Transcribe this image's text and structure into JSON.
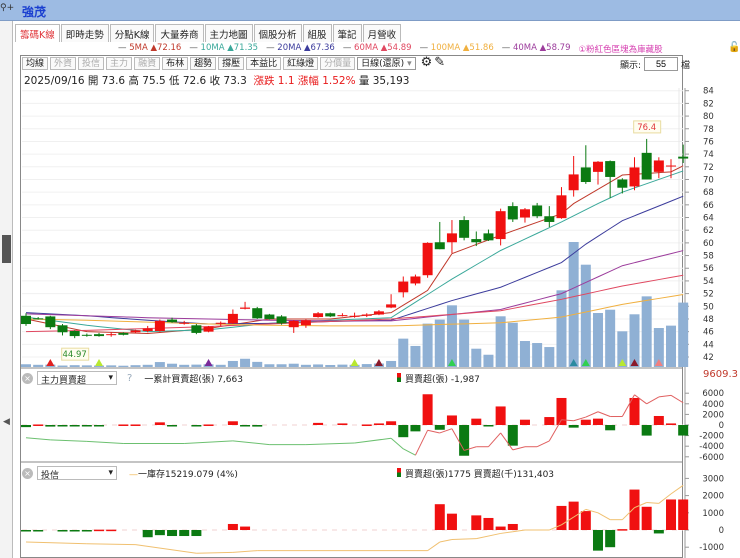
{
  "window": {
    "title": "強茂",
    "toolbar_icons": [
      "search-icon",
      "plus-icon"
    ]
  },
  "tabs": [
    {
      "label": "籌碼K線",
      "active": true
    },
    {
      "label": "即時走勢"
    },
    {
      "label": "分點K線"
    },
    {
      "label": "大量券商"
    },
    {
      "label": "主力地圖"
    },
    {
      "label": "個股分析"
    },
    {
      "label": "組股"
    },
    {
      "label": "筆記"
    },
    {
      "label": "月營收"
    }
  ],
  "ma_legend": [
    {
      "label": "5MA",
      "value": "▲72.16",
      "color": "#c0392b"
    },
    {
      "label": "10MA",
      "value": "▲71.35",
      "color": "#3aa89a"
    },
    {
      "label": "20MA",
      "value": "▲67.36",
      "color": "#3c3c9c"
    },
    {
      "label": "60MA",
      "value": "▲54.89",
      "color": "#e04860"
    },
    {
      "label": "100MA",
      "value": "▲51.86",
      "color": "#f0b040"
    },
    {
      "label": "40MA",
      "value": "▲58.79",
      "color": "#9c3c9c"
    }
  ],
  "notice": "①粉紅色區塊為庫藏股",
  "toolbar": {
    "buttons": [
      {
        "label": "均線"
      },
      {
        "label": "外資",
        "disabled": true
      },
      {
        "label": "投信",
        "disabled": true
      },
      {
        "label": "主力",
        "disabled": true
      },
      {
        "label": "融資",
        "disabled": true
      },
      {
        "label": "布林"
      },
      {
        "label": "趨勢"
      },
      {
        "label": "撐壓"
      },
      {
        "label": "本益比"
      },
      {
        "label": "紅綠燈"
      },
      {
        "label": "分價量",
        "disabled": true
      }
    ],
    "period": "日線(還原)",
    "show_label": "顯示:",
    "show_value": "55",
    "show_unit": "檔"
  },
  "info": {
    "date": "2025/09/16",
    "open": "開 73.6",
    "high": "高 75.5",
    "low": "低 72.6",
    "close": "收 73.3",
    "change": "漲跌 1.1",
    "pct": "漲幅 1.52%",
    "volume": "量 35,193"
  },
  "colors": {
    "up": "#f01010",
    "down": "#0b7a12",
    "volume": "#8fb0d4"
  },
  "chart_data": [
    {
      "type": "candlestick",
      "yticks": [
        84,
        82,
        80,
        78,
        76,
        74,
        72,
        70,
        68,
        66,
        64,
        62,
        60,
        58,
        56,
        54,
        52,
        50,
        48,
        46,
        44,
        42
      ],
      "ylim": [
        41,
        85
      ],
      "ohlc": [
        [
          48.5,
          48.9,
          46.9,
          47.2
        ],
        [
          48.1,
          48.3,
          47.9,
          48.0
        ],
        [
          48.4,
          48.5,
          46.4,
          46.7
        ],
        [
          47.0,
          47.2,
          45.4,
          45.9
        ],
        [
          46.1,
          46.2,
          44.97,
          45.3
        ],
        [
          45.5,
          45.7,
          45.2,
          45.4
        ],
        [
          45.6,
          45.8,
          45.2,
          45.3
        ],
        [
          45.6,
          45.9,
          45.2,
          45.6
        ],
        [
          45.8,
          45.9,
          45.4,
          45.5
        ],
        [
          45.9,
          46.3,
          45.8,
          46.2
        ],
        [
          46.1,
          46.9,
          45.9,
          46.5
        ],
        [
          46.1,
          47.9,
          46.0,
          47.7
        ],
        [
          47.9,
          48.2,
          47.4,
          47.5
        ],
        [
          47.4,
          47.7,
          47.1,
          47.4
        ],
        [
          47.0,
          47.2,
          45.6,
          45.8
        ],
        [
          46.0,
          46.9,
          45.9,
          46.8
        ],
        [
          47.4,
          47.6,
          46.9,
          47.4
        ],
        [
          47.3,
          49.5,
          47.2,
          48.8
        ],
        [
          49.6,
          50.7,
          49.5,
          49.8
        ],
        [
          49.7,
          49.9,
          48.0,
          48.1
        ],
        [
          48.7,
          48.8,
          47.9,
          48.0
        ],
        [
          48.4,
          48.6,
          47.1,
          47.3
        ],
        [
          46.7,
          47.8,
          45.8,
          47.7
        ],
        [
          47.0,
          47.9,
          46.6,
          47.8
        ],
        [
          48.3,
          49.1,
          48.2,
          48.9
        ],
        [
          48.9,
          49.0,
          48.3,
          48.4
        ],
        [
          48.6,
          48.9,
          48.4,
          48.6
        ],
        [
          48.5,
          49.0,
          48.2,
          48.5
        ],
        [
          48.5,
          48.9,
          48.3,
          48.7
        ],
        [
          48.7,
          49.4,
          48.6,
          49.2
        ],
        [
          49.8,
          51.9,
          49.7,
          50.3
        ],
        [
          52.2,
          54.7,
          51.4,
          53.9
        ],
        [
          53.6,
          55.0,
          53.3,
          54.7
        ],
        [
          54.9,
          60.1,
          54.5,
          60.0
        ],
        [
          60.1,
          63.3,
          59.0,
          59.0
        ],
        [
          60.1,
          63.6,
          58.4,
          61.5
        ],
        [
          63.6,
          64.2,
          60.4,
          60.8
        ],
        [
          60.6,
          61.8,
          59.5,
          60.1
        ],
        [
          61.5,
          62.1,
          60.3,
          60.4
        ],
        [
          60.6,
          65.4,
          59.6,
          65.0
        ],
        [
          65.8,
          66.4,
          63.3,
          63.7
        ],
        [
          64.0,
          65.5,
          63.2,
          65.3
        ],
        [
          65.9,
          66.3,
          63.9,
          64.2
        ],
        [
          64.2,
          65.8,
          62.5,
          63.3
        ],
        [
          63.9,
          68.8,
          63.8,
          67.5
        ],
        [
          68.3,
          73.7,
          67.3,
          70.8
        ],
        [
          71.9,
          75.4,
          69.3,
          69.6
        ],
        [
          71.2,
          72.9,
          69.2,
          72.8
        ],
        [
          72.9,
          73.0,
          67.1,
          70.4
        ],
        [
          70.0,
          70.2,
          67.8,
          68.7
        ],
        [
          68.9,
          73.5,
          68.3,
          71.9
        ],
        [
          74.2,
          76.4,
          70.0,
          70.0
        ],
        [
          71.2,
          73.5,
          70.2,
          73.0
        ],
        [
          72.2,
          73.2,
          70.2,
          72.2
        ],
        [
          73.6,
          75.5,
          72.6,
          73.3
        ]
      ],
      "volume": [
        1500,
        1200,
        1300,
        800,
        1000,
        900,
        800,
        900,
        700,
        1000,
        1200,
        2700,
        1800,
        1200,
        1300,
        1500,
        1200,
        3300,
        4500,
        2800,
        1500,
        1500,
        1800,
        1200,
        1400,
        1100,
        1300,
        1200,
        1600,
        1900,
        3300,
        15500,
        11500,
        23700,
        25900,
        33700,
        25900,
        10000,
        6700,
        27700,
        24200,
        14200,
        13100,
        10900,
        41900,
        68300,
        55900,
        29500,
        31300,
        19500,
        28800,
        38600,
        21300,
        22600,
        35193
      ],
      "ma": [
        {
          "name": "5MA",
          "color": "#c0392b",
          "points": [
            [
              0,
              48.0
            ],
            [
              5,
              46.0
            ],
            [
              10,
              45.7
            ],
            [
              15,
              46.5
            ],
            [
              20,
              48.0
            ],
            [
              25,
              48.0
            ],
            [
              30,
              49.0
            ],
            [
              33,
              52.5
            ],
            [
              35,
              58.3
            ],
            [
              39,
              61.2
            ],
            [
              44,
              64.6
            ],
            [
              45,
              66.2
            ],
            [
              49,
              70.7
            ],
            [
              53,
              71.2
            ],
            [
              54,
              72.16
            ]
          ]
        },
        {
          "name": "10MA",
          "color": "#3aa89a",
          "points": [
            [
              0,
              48.3
            ],
            [
              5,
              47.0
            ],
            [
              10,
              46.0
            ],
            [
              15,
              46.3
            ],
            [
              20,
              47.3
            ],
            [
              25,
              47.8
            ],
            [
              30,
              48.2
            ],
            [
              35,
              54.3
            ],
            [
              39,
              58.8
            ],
            [
              44,
              63.3
            ],
            [
              47,
              66.2
            ],
            [
              49,
              68.0
            ],
            [
              54,
              71.35
            ]
          ]
        },
        {
          "name": "20MA",
          "color": "#3c3c9c",
          "points": [
            [
              0,
              49.0
            ],
            [
              5,
              48.5
            ],
            [
              10,
              47.8
            ],
            [
              15,
              47.2
            ],
            [
              20,
              47.3
            ],
            [
              25,
              47.6
            ],
            [
              30,
              47.8
            ],
            [
              35,
              50.9
            ],
            [
              39,
              53.0
            ],
            [
              44,
              56.9
            ],
            [
              46,
              59.8
            ],
            [
              49,
              63.5
            ],
            [
              54,
              67.36
            ]
          ]
        },
        {
          "name": "40MA",
          "color": "#9c3c9c",
          "points": [
            [
              0,
              48.8
            ],
            [
              5,
              48.5
            ],
            [
              10,
              48.2
            ],
            [
              15,
              48.0
            ],
            [
              20,
              47.8
            ],
            [
              25,
              47.7
            ],
            [
              30,
              47.7
            ],
            [
              39,
              49.5
            ],
            [
              44,
              52.0
            ],
            [
              49,
              56.4
            ],
            [
              54,
              58.79
            ]
          ]
        },
        {
          "name": "60MA",
          "color": "#e04860",
          "points": [
            [
              0,
              46.0
            ],
            [
              5,
              46.2
            ],
            [
              10,
              46.5
            ],
            [
              15,
              46.8
            ],
            [
              20,
              47.2
            ],
            [
              25,
              47.6
            ],
            [
              30,
              48.0
            ],
            [
              39,
              49.3
            ],
            [
              44,
              51.1
            ],
            [
              49,
              53.2
            ],
            [
              54,
              54.89
            ]
          ]
        },
        {
          "name": "100MA",
          "color": "#f0b040",
          "points": [
            [
              0,
              48.0
            ],
            [
              5,
              47.8
            ],
            [
              10,
              47.5
            ],
            [
              15,
              47.2
            ],
            [
              20,
              47.0
            ],
            [
              25,
              46.9
            ],
            [
              30,
              46.9
            ],
            [
              39,
              47.4
            ],
            [
              44,
              48.3
            ],
            [
              49,
              50.3
            ],
            [
              54,
              51.86
            ]
          ]
        }
      ],
      "annotations": [
        {
          "idx": 51,
          "value": "76.4",
          "color": "#e0353a"
        },
        {
          "idx": 4,
          "value": "44.97",
          "color": "#2a8a2a"
        }
      ],
      "markers": [
        {
          "idx": 2,
          "color": "#e02020"
        },
        {
          "idx": 6,
          "color": "#b8e830"
        },
        {
          "idx": 15,
          "color": "#7a2a9a"
        },
        {
          "idx": 27,
          "color": "#b8e830"
        },
        {
          "idx": 29,
          "color": "#8a1a2a"
        },
        {
          "idx": 35,
          "color": "#30d050"
        },
        {
          "idx": 45,
          "color": "#2a8aa0"
        },
        {
          "idx": 46,
          "color": "#30d050"
        },
        {
          "idx": 49,
          "color": "#b8e830"
        },
        {
          "idx": 50,
          "color": "#8a1a2a"
        },
        {
          "idx": 52,
          "color": "#f08080"
        }
      ]
    },
    {
      "type": "bar+line",
      "panel": "主力買賣超",
      "yticks": [
        6000,
        4000,
        2000,
        0,
        -2000,
        -4000,
        -6000
      ],
      "top_value": "9609.3",
      "legend_line": "一累計買賣超(張) 7,663",
      "legend_bar": "買賣超(張) -1,987",
      "help": "?",
      "bars": [
        -400,
        100,
        -300,
        -100,
        -100,
        -100,
        -200,
        0,
        100,
        100,
        0,
        500,
        -200,
        0,
        -200,
        100,
        0,
        700,
        -100,
        -300,
        0,
        0,
        0,
        0,
        400,
        0,
        300,
        0,
        100,
        300,
        700,
        -2300,
        -1200,
        5800,
        -900,
        1800,
        -5800,
        1200,
        -100,
        3500,
        -3900,
        1000,
        0,
        1500,
        5100,
        -500,
        1000,
        1200,
        -1000,
        0,
        5100,
        -2000,
        1700,
        300,
        -1987
      ],
      "line": [
        [
          0,
          -2400
        ],
        [
          2,
          -2800
        ],
        [
          5,
          -3100
        ],
        [
          8,
          -3500
        ],
        [
          13,
          -3500
        ],
        [
          17,
          -3000
        ],
        [
          20,
          -3700
        ],
        [
          23,
          -3700
        ],
        [
          27,
          -3400
        ],
        [
          30,
          -2500
        ],
        [
          31,
          -4500
        ],
        [
          32,
          -5700
        ],
        [
          33,
          -1000
        ],
        [
          34,
          -1500
        ],
        [
          35,
          -700
        ],
        [
          36,
          -4800
        ],
        [
          37,
          -4100
        ],
        [
          38,
          -4100
        ],
        [
          39,
          -1500
        ],
        [
          40,
          -4700
        ],
        [
          41,
          -4100
        ],
        [
          42,
          -4100
        ],
        [
          43,
          -3000
        ],
        [
          44,
          1000
        ],
        [
          45,
          800
        ],
        [
          46,
          1500
        ],
        [
          47,
          2500
        ],
        [
          48,
          1600
        ],
        [
          49,
          1600
        ],
        [
          50,
          5700
        ],
        [
          51,
          4000
        ],
        [
          52,
          5300
        ],
        [
          53,
          5600
        ],
        [
          54,
          4200
        ]
      ]
    },
    {
      "type": "bar+line",
      "panel": "投信",
      "yticks": [
        3000,
        2000,
        1000,
        0,
        -1000
      ],
      "legend_line": "一庫存15219.079 (4%)",
      "legend_bar": "買賣超(張)1775 買賣超(千)131,403",
      "bars": [
        -50,
        -50,
        0,
        -50,
        -50,
        -50,
        20,
        20,
        0,
        0,
        -420,
        -300,
        -350,
        -350,
        -350,
        0,
        0,
        350,
        200,
        0,
        0,
        0,
        0,
        0,
        0,
        0,
        0,
        0,
        0,
        0,
        0,
        0,
        0,
        0,
        1500,
        950,
        0,
        850,
        700,
        200,
        350,
        0,
        0,
        0,
        1400,
        1650,
        1100,
        -1200,
        -1000,
        50,
        2350,
        1350,
        -200,
        1775,
        1775
      ],
      "line": [
        [
          0,
          -700
        ],
        [
          5,
          -800
        ],
        [
          9,
          -850
        ],
        [
          14,
          -1350
        ],
        [
          17,
          -1300
        ],
        [
          19,
          -1200
        ],
        [
          33,
          -1200
        ],
        [
          34,
          -700
        ],
        [
          35,
          -550
        ],
        [
          37,
          -500
        ],
        [
          39,
          -200
        ],
        [
          40,
          -100
        ],
        [
          41,
          0
        ],
        [
          43,
          0
        ],
        [
          44,
          300
        ],
        [
          46,
          1200
        ],
        [
          47,
          1000
        ],
        [
          48,
          600
        ],
        [
          49,
          600
        ],
        [
          50,
          1300
        ],
        [
          51,
          1600
        ],
        [
          52,
          1550
        ],
        [
          53,
          2100
        ],
        [
          54,
          2600
        ]
      ]
    }
  ]
}
